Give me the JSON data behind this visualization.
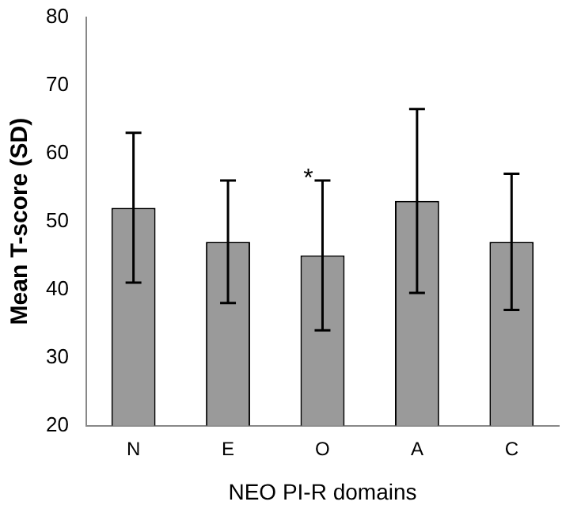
{
  "chart_data": {
    "type": "bar",
    "xlabel": "NEO PI-R domains",
    "ylabel": "Mean T-score (SD)",
    "categories": [
      "N",
      "E",
      "O",
      "A",
      "C"
    ],
    "values": [
      52,
      47,
      45,
      53,
      47
    ],
    "errors": [
      11,
      9,
      11,
      13.5,
      10
    ],
    "color": "#9a9a9a",
    "ylim": [
      20,
      80
    ],
    "yticks": [
      20,
      30,
      40,
      50,
      60,
      70,
      80
    ],
    "grid": false,
    "legend": false,
    "annotations": [
      {
        "text": "*",
        "x": "O",
        "y": 57
      }
    ]
  }
}
